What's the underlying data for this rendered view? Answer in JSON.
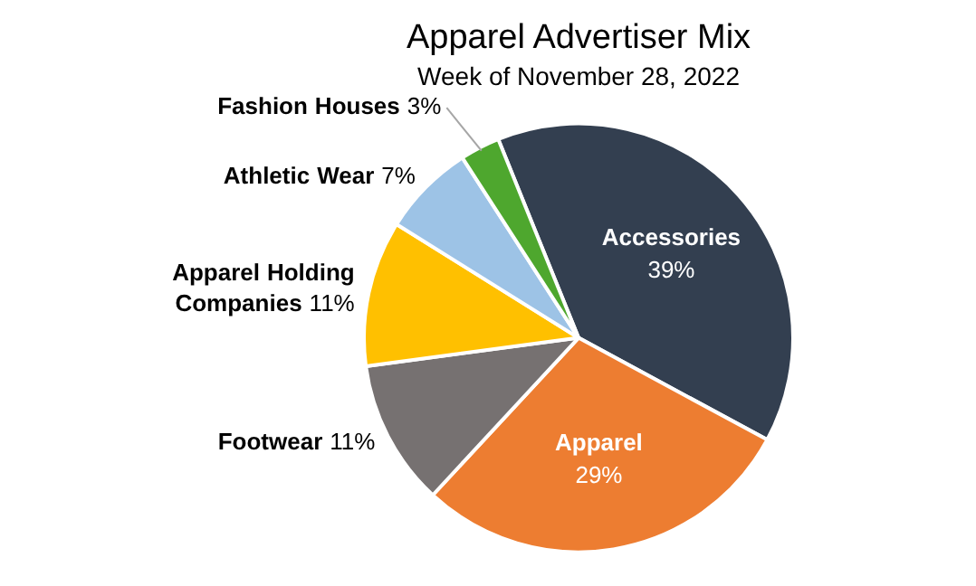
{
  "chart_data": {
    "type": "pie",
    "title": "Apparel Advertiser Mix",
    "subtitle": "Week of November 28, 2022",
    "categories": [
      "Accessories",
      "Apparel",
      "Footwear",
      "Apparel Holding Companies",
      "Athletic Wear",
      "Fashion Houses"
    ],
    "values": [
      39,
      29,
      11,
      11,
      7,
      3
    ],
    "value_labels": [
      "39%",
      "29%",
      "11%",
      "11%",
      "7%",
      "3%"
    ],
    "colors": [
      "#333f50",
      "#ed7d31",
      "#767171",
      "#ffc000",
      "#9dc3e6",
      "#4ea72e"
    ],
    "legend": false
  }
}
